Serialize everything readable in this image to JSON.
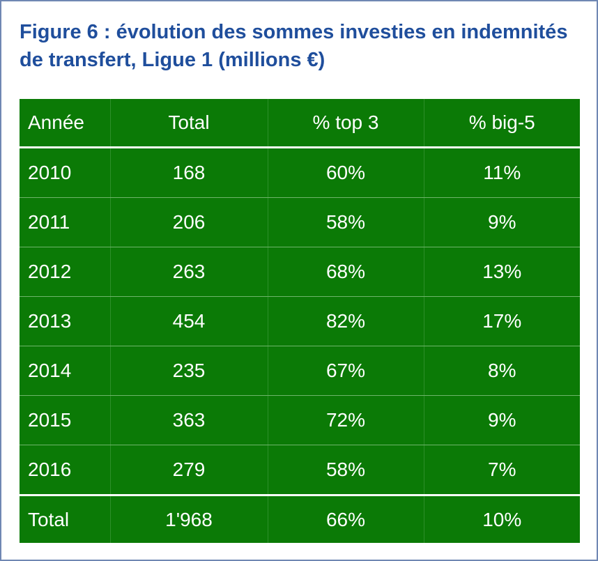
{
  "title": "Figure 6 : évolution des sommes investies en indemnités de transfert, Ligue 1 (millions €)",
  "colors": {
    "title": "#1f4e9c",
    "table_fill": "#0b7a06",
    "border": "#6f87b3"
  },
  "chart_data": {
    "type": "table",
    "title": "Figure 6 : évolution des sommes investies en indemnités de transfert, Ligue 1 (millions €)",
    "columns": [
      "Année",
      "Total",
      "% top 3",
      "% big-5"
    ],
    "rows": [
      [
        "2010",
        "168",
        "60%",
        "11%"
      ],
      [
        "2011",
        "206",
        "58%",
        "9%"
      ],
      [
        "2012",
        "263",
        "68%",
        "13%"
      ],
      [
        "2013",
        "454",
        "82%",
        "17%"
      ],
      [
        "2014",
        "235",
        "67%",
        "8%"
      ],
      [
        "2015",
        "363",
        "72%",
        "9%"
      ],
      [
        "2016",
        "279",
        "58%",
        "7%"
      ]
    ],
    "total_row": [
      "Total",
      "1'968",
      "66%",
      "10%"
    ]
  }
}
